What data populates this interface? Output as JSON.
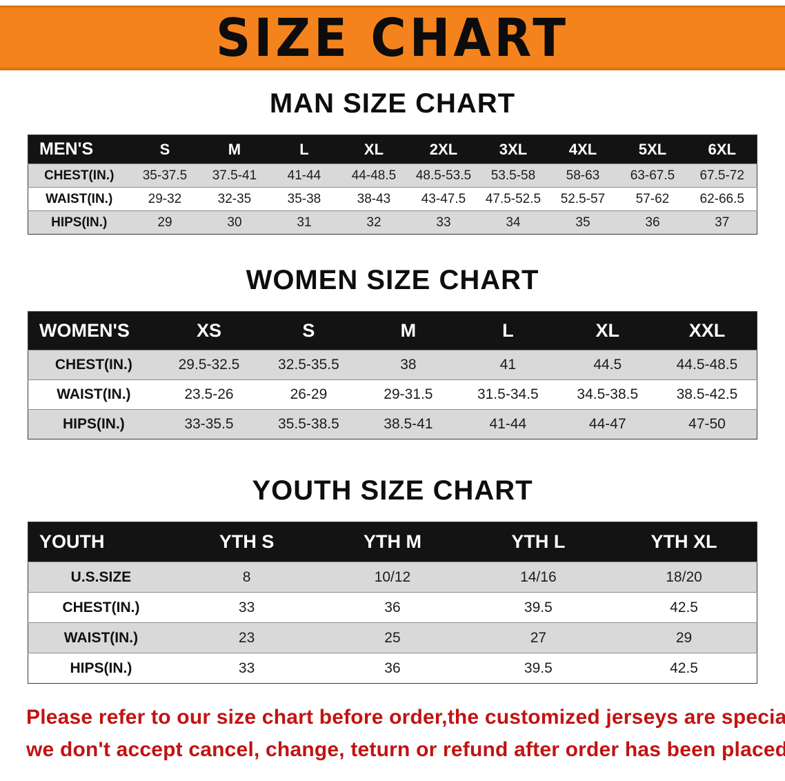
{
  "banner": {
    "title": "SIZE CHART",
    "bg_color": "#F5831D",
    "text_color": "#0c0c0c"
  },
  "sections": [
    {
      "heading": "MAN SIZE CHART",
      "table": {
        "name": "mens",
        "header": [
          "MEN'S",
          "S",
          "M",
          "L",
          "XL",
          "2XL",
          "3XL",
          "4XL",
          "5XL",
          "6XL"
        ],
        "rows": [
          [
            "CHEST(IN.)",
            "35-37.5",
            "37.5-41",
            "41-44",
            "44-48.5",
            "48.5-53.5",
            "53.5-58",
            "58-63",
            "63-67.5",
            "67.5-72"
          ],
          [
            "WAIST(IN.)",
            "29-32",
            "32-35",
            "35-38",
            "38-43",
            "43-47.5",
            "47.5-52.5",
            "52.5-57",
            "57-62",
            "62-66.5"
          ],
          [
            "HIPS(IN.)",
            "29",
            "30",
            "31",
            "32",
            "33",
            "34",
            "35",
            "36",
            "37"
          ]
        ]
      }
    },
    {
      "heading": "WOMEN SIZE CHART",
      "table": {
        "name": "womens",
        "header": [
          "WOMEN'S",
          "XS",
          "S",
          "M",
          "L",
          "XL",
          "XXL"
        ],
        "rows": [
          [
            "CHEST(IN.)",
            "29.5-32.5",
            "32.5-35.5",
            "38",
            "41",
            "44.5",
            "44.5-48.5"
          ],
          [
            "WAIST(IN.)",
            "23.5-26",
            "26-29",
            "29-31.5",
            "31.5-34.5",
            "34.5-38.5",
            "38.5-42.5"
          ],
          [
            "HIPS(IN.)",
            "33-35.5",
            "35.5-38.5",
            "38.5-41",
            "41-44",
            "44-47",
            "47-50"
          ]
        ]
      }
    },
    {
      "heading": "YOUTH SIZE CHART",
      "table": {
        "name": "youth",
        "header": [
          "YOUTH",
          "YTH S",
          "YTH M",
          "YTH L",
          "YTH XL"
        ],
        "rows": [
          [
            "U.S.SIZE",
            "8",
            "10/12",
            "14/16",
            "18/20"
          ],
          [
            "CHEST(IN.)",
            "33",
            "36",
            "39.5",
            "42.5"
          ],
          [
            "WAIST(IN.)",
            "23",
            "25",
            "27",
            "29"
          ],
          [
            "HIPS(IN.)",
            "33",
            "36",
            "39.5",
            "42.5"
          ]
        ]
      }
    }
  ],
  "footer": {
    "text_line1": "Please refer to our size chart before order,the customized jerseys are special products,",
    "text_line2": "we don't accept cancel, change, teturn or refund after order has been placed!",
    "text_color": "#c21313"
  }
}
